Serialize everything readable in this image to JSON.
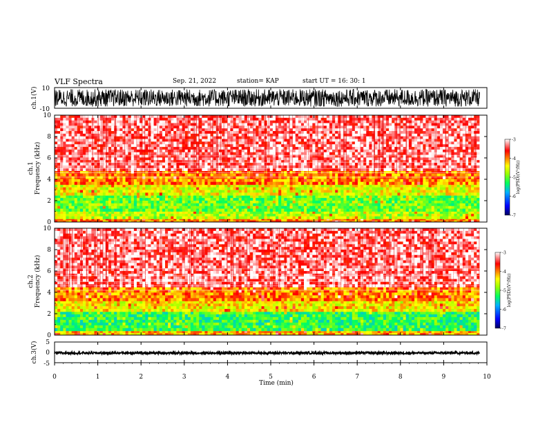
{
  "header": {
    "title": "VLF Spectra",
    "date": "Sep. 21, 2022",
    "station": "station= KAP",
    "start": "start  UT =  16: 30: 1"
  },
  "chart_data": [
    {
      "type": "line",
      "panel": "ch1_waveform",
      "ylabel": "ch.1(V)",
      "xlim": [
        0,
        10
      ],
      "ylim": [
        -10,
        10
      ],
      "y_tick_labels": [
        "-10",
        "10"
      ],
      "description_values": {
        "approx_amplitude_range": [
          -8,
          8
        ]
      }
    },
    {
      "type": "heatmap",
      "panel": "ch1_spectrogram",
      "ylabel": "ch.1\nFrequency (kHz)",
      "ylabel_line1": "ch.1",
      "ylabel_line2": "Frequency (kHz)",
      "xlim": [
        0,
        10
      ],
      "ylim": [
        0,
        10
      ],
      "y_ticks": [
        "0",
        "2",
        "4",
        "6",
        "8",
        "10"
      ],
      "data_end_minute": 9.83,
      "band_levels_by_freq_kHz": [
        {
          "from": 0.0,
          "to": 0.3,
          "log_psd": -4.0
        },
        {
          "from": 0.3,
          "to": 1.0,
          "log_psd": -4.7
        },
        {
          "from": 1.0,
          "to": 2.5,
          "log_psd": -5.0
        },
        {
          "from": 2.5,
          "to": 3.5,
          "log_psd": -4.5
        },
        {
          "from": 3.5,
          "to": 4.8,
          "log_psd": -4.0
        },
        {
          "from": 4.8,
          "to": 10.0,
          "log_psd": -3.3
        }
      ],
      "colorbar": {
        "label": "log(PSD)(V²/Hz)",
        "ticks": [
          "-3",
          "-4",
          "-5",
          "-6",
          "-7"
        ],
        "range": [
          -7,
          -3
        ]
      }
    },
    {
      "type": "heatmap",
      "panel": "ch2_spectrogram",
      "ylabel_line1": "ch.2",
      "ylabel_line2": "Frequency (kHz)",
      "xlim": [
        0,
        10
      ],
      "ylim": [
        0,
        10
      ],
      "y_ticks": [
        "0",
        "2",
        "4",
        "6",
        "8",
        "10"
      ],
      "data_end_minute": 9.83,
      "band_levels_by_freq_kHz": [
        {
          "from": 0.0,
          "to": 0.4,
          "log_psd": -4.2
        },
        {
          "from": 0.4,
          "to": 2.2,
          "log_psd": -5.2
        },
        {
          "from": 2.2,
          "to": 3.2,
          "log_psd": -4.4
        },
        {
          "from": 3.2,
          "to": 4.5,
          "log_psd": -4.0
        },
        {
          "from": 4.5,
          "to": 10.0,
          "log_psd": -3.3
        }
      ],
      "colorbar": {
        "label": "log(PSD)(V²/Hz)",
        "ticks": [
          "-3",
          "-4",
          "-5",
          "-6",
          "-7"
        ],
        "range": [
          -7,
          -3
        ]
      }
    },
    {
      "type": "line",
      "panel": "ch3_waveform",
      "ylabel": "ch.3(V)",
      "xlim": [
        0,
        10
      ],
      "ylim": [
        -5,
        5
      ],
      "y_tick_labels": [
        "-5",
        "0",
        "5"
      ],
      "description_values": {
        "approx_level": -0.3,
        "approx_band": [
          -0.9,
          0.2
        ]
      }
    }
  ],
  "xaxis": {
    "label": "Time (min)",
    "ticks": [
      "0",
      "1",
      "2",
      "3",
      "4",
      "5",
      "6",
      "7",
      "8",
      "9",
      "10"
    ]
  },
  "colors": {
    "trace": "#000000",
    "axis": "#000000",
    "colormap": [
      "#000080",
      "#0000ff",
      "#00c0ff",
      "#00ff80",
      "#c0ff00",
      "#ffff00",
      "#ff8000",
      "#ff0000",
      "#ffffff"
    ]
  }
}
